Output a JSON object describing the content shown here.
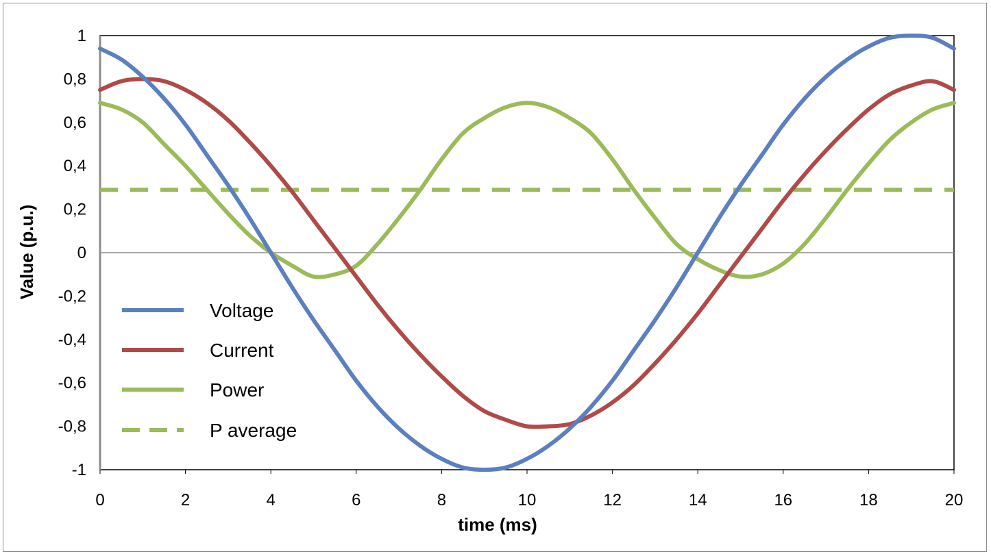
{
  "chart_data": {
    "type": "line",
    "title": "",
    "xlabel": "time (ms)",
    "ylabel": "Value (p.u.)",
    "xlim": [
      0,
      20
    ],
    "ylim": [
      -1,
      1
    ],
    "x_ticks": [
      "0",
      "2",
      "4",
      "6",
      "8",
      "10",
      "12",
      "14",
      "16",
      "18",
      "20"
    ],
    "y_ticks": [
      "1",
      "0,8",
      "0,6",
      "0,4",
      "0,2",
      "0",
      "-0,2",
      "-0,4",
      "-0,6",
      "-0,8",
      "-1"
    ],
    "grid": false,
    "legend_position": "left",
    "x": [
      0,
      0.5,
      1,
      1.5,
      2,
      2.5,
      3,
      3.5,
      4,
      4.5,
      5,
      5.5,
      6,
      6.5,
      7,
      7.5,
      8,
      8.5,
      9,
      9.5,
      10,
      10.5,
      11,
      11.5,
      12,
      12.5,
      13,
      13.5,
      14,
      14.5,
      15,
      15.5,
      16,
      16.5,
      17,
      17.5,
      18,
      18.5,
      19,
      19.5,
      20
    ],
    "series": [
      {
        "name": "Voltage",
        "color": "#5b7fbf",
        "style": "solid",
        "values": [
          0.94,
          0.89,
          0.81,
          0.71,
          0.59,
          0.45,
          0.31,
          0.16,
          0.0,
          -0.16,
          -0.31,
          -0.45,
          -0.59,
          -0.71,
          -0.81,
          -0.89,
          -0.95,
          -0.99,
          -1.0,
          -0.99,
          -0.95,
          -0.89,
          -0.81,
          -0.71,
          -0.59,
          -0.45,
          -0.31,
          -0.16,
          0.0,
          0.16,
          0.31,
          0.45,
          0.59,
          0.71,
          0.81,
          0.89,
          0.95,
          0.99,
          1.0,
          0.99,
          0.94
        ]
      },
      {
        "name": "Current",
        "color": "#b04a48",
        "style": "solid",
        "values": [
          0.75,
          0.79,
          0.8,
          0.79,
          0.75,
          0.69,
          0.61,
          0.51,
          0.4,
          0.28,
          0.15,
          0.02,
          -0.11,
          -0.24,
          -0.36,
          -0.47,
          -0.57,
          -0.66,
          -0.73,
          -0.77,
          -0.8,
          -0.8,
          -0.79,
          -0.75,
          -0.69,
          -0.61,
          -0.51,
          -0.4,
          -0.28,
          -0.15,
          -0.02,
          0.11,
          0.24,
          0.36,
          0.47,
          0.57,
          0.66,
          0.73,
          0.77,
          0.79,
          0.75
        ]
      },
      {
        "name": "Power",
        "color": "#9bbb59",
        "style": "solid",
        "values": [
          0.69,
          0.66,
          0.6,
          0.5,
          0.4,
          0.29,
          0.18,
          0.08,
          0.0,
          -0.06,
          -0.11,
          -0.1,
          -0.06,
          0.04,
          0.16,
          0.29,
          0.43,
          0.55,
          0.62,
          0.67,
          0.69,
          0.67,
          0.62,
          0.55,
          0.43,
          0.29,
          0.16,
          0.04,
          -0.03,
          -0.08,
          -0.11,
          -0.1,
          -0.05,
          0.04,
          0.16,
          0.29,
          0.41,
          0.52,
          0.6,
          0.66,
          0.69
        ]
      },
      {
        "name": "P average",
        "color": "#9bbb59",
        "style": "dashed",
        "values": [
          0.29,
          0.29,
          0.29,
          0.29,
          0.29,
          0.29,
          0.29,
          0.29,
          0.29,
          0.29,
          0.29,
          0.29,
          0.29,
          0.29,
          0.29,
          0.29,
          0.29,
          0.29,
          0.29,
          0.29,
          0.29,
          0.29,
          0.29,
          0.29,
          0.29,
          0.29,
          0.29,
          0.29,
          0.29,
          0.29,
          0.29,
          0.29,
          0.29,
          0.29,
          0.29,
          0.29,
          0.29,
          0.29,
          0.29,
          0.29,
          0.29
        ]
      }
    ]
  }
}
